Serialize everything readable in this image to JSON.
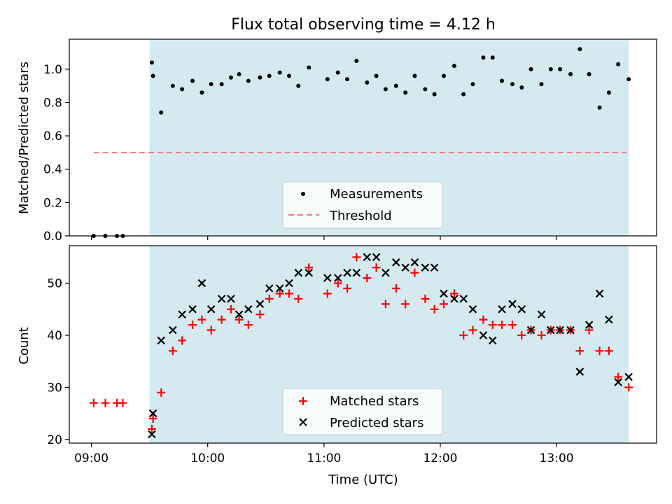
{
  "figure": {
    "title": "Flux total observing time = 4.12 h",
    "xlabel": "Time (UTC)",
    "x_tick_labels": [
      "09:00",
      "10:00",
      "11:00",
      "12:00",
      "13:00"
    ],
    "observing_window": {
      "start_h": 9.5,
      "end_h": 13.62
    },
    "colors": {
      "window_fill": "#d4eaf0",
      "threshold": "#f08080",
      "matched": "#ff0000",
      "predicted": "#000000",
      "measurement": "#000000"
    }
  },
  "chart_data": [
    {
      "type": "scatter",
      "name": "ratio-panel",
      "title": "Flux total observing time = 4.12 h",
      "xlabel": "",
      "ylabel": "Matched/Predicted stars",
      "xlim_hours": [
        8.81,
        13.86
      ],
      "ylim": [
        0,
        1.18
      ],
      "y_ticks": [
        0.0,
        0.2,
        0.4,
        0.6,
        0.8,
        1.0
      ],
      "y_tick_labels": [
        "0.0",
        "0.2",
        "0.4",
        "0.6",
        "0.8",
        "1.0"
      ],
      "legend": {
        "placement": "lower-center",
        "entries": [
          "Measurements",
          "Threshold"
        ]
      },
      "threshold": {
        "name": "Threshold",
        "value": 0.5,
        "x_range_hours": [
          9.02,
          13.6
        ],
        "style": "dashed"
      },
      "series": [
        {
          "name": "Measurements",
          "marker": "dot",
          "points": [
            [
              9.02,
              0.0
            ],
            [
              9.12,
              0.0
            ],
            [
              9.22,
              0.0
            ],
            [
              9.27,
              0.0
            ],
            [
              9.52,
              1.04
            ],
            [
              9.53,
              0.96
            ],
            [
              9.6,
              0.74
            ],
            [
              9.7,
              0.9
            ],
            [
              9.78,
              0.88
            ],
            [
              9.87,
              0.93
            ],
            [
              9.95,
              0.86
            ],
            [
              10.03,
              0.91
            ],
            [
              10.12,
              0.91
            ],
            [
              10.2,
              0.95
            ],
            [
              10.27,
              0.97
            ],
            [
              10.35,
              0.93
            ],
            [
              10.45,
              0.95
            ],
            [
              10.53,
              0.96
            ],
            [
              10.62,
              0.98
            ],
            [
              10.7,
              0.96
            ],
            [
              10.78,
              0.9
            ],
            [
              10.87,
              1.01
            ],
            [
              11.03,
              0.94
            ],
            [
              11.12,
              0.98
            ],
            [
              11.2,
              0.94
            ],
            [
              11.28,
              1.05
            ],
            [
              11.37,
              0.92
            ],
            [
              11.45,
              0.96
            ],
            [
              11.53,
              0.88
            ],
            [
              11.62,
              0.9
            ],
            [
              11.7,
              0.86
            ],
            [
              11.78,
              0.96
            ],
            [
              11.87,
              0.88
            ],
            [
              11.95,
              0.85
            ],
            [
              12.03,
              0.96
            ],
            [
              12.12,
              1.02
            ],
            [
              12.2,
              0.85
            ],
            [
              12.28,
              0.91
            ],
            [
              12.37,
              1.07
            ],
            [
              12.45,
              1.07
            ],
            [
              12.53,
              0.93
            ],
            [
              12.62,
              0.91
            ],
            [
              12.7,
              0.89
            ],
            [
              12.78,
              1.0
            ],
            [
              12.87,
              0.91
            ],
            [
              12.95,
              1.0
            ],
            [
              13.03,
              1.0
            ],
            [
              13.12,
              0.97
            ],
            [
              13.2,
              1.12
            ],
            [
              13.28,
              0.97
            ],
            [
              13.37,
              0.77
            ],
            [
              13.45,
              0.86
            ],
            [
              13.53,
              1.03
            ],
            [
              13.62,
              0.94
            ]
          ]
        }
      ]
    },
    {
      "type": "scatter",
      "name": "count-panel",
      "xlabel": "Time (UTC)",
      "ylabel": "Count",
      "xlim_hours": [
        8.81,
        13.86
      ],
      "ylim": [
        19.3,
        57.2
      ],
      "y_ticks": [
        20,
        30,
        40,
        50
      ],
      "y_tick_labels": [
        "20",
        "30",
        "40",
        "50"
      ],
      "x_ticks_hours": [
        9,
        10,
        11,
        12,
        13
      ],
      "x_tick_labels": [
        "09:00",
        "10:00",
        "11:00",
        "12:00",
        "13:00"
      ],
      "legend": {
        "placement": "lower-center",
        "entries": [
          "Matched stars",
          "Predicted stars"
        ]
      },
      "series": [
        {
          "name": "Matched stars",
          "marker": "plus",
          "points": [
            [
              9.02,
              27
            ],
            [
              9.12,
              27
            ],
            [
              9.22,
              27
            ],
            [
              9.27,
              27
            ],
            [
              9.52,
              22
            ],
            [
              9.53,
              24
            ],
            [
              9.6,
              29
            ],
            [
              9.7,
              37
            ],
            [
              9.78,
              39
            ],
            [
              9.87,
              42
            ],
            [
              9.95,
              43
            ],
            [
              10.03,
              41
            ],
            [
              10.12,
              43
            ],
            [
              10.2,
              45
            ],
            [
              10.27,
              43
            ],
            [
              10.35,
              42
            ],
            [
              10.45,
              44
            ],
            [
              10.53,
              47
            ],
            [
              10.62,
              48
            ],
            [
              10.7,
              48
            ],
            [
              10.78,
              47
            ],
            [
              10.87,
              53
            ],
            [
              11.03,
              48
            ],
            [
              11.12,
              50
            ],
            [
              11.2,
              49
            ],
            [
              11.28,
              55
            ],
            [
              11.37,
              51
            ],
            [
              11.45,
              53
            ],
            [
              11.53,
              46
            ],
            [
              11.62,
              49
            ],
            [
              11.7,
              46
            ],
            [
              11.78,
              52
            ],
            [
              11.87,
              47
            ],
            [
              11.95,
              45
            ],
            [
              12.03,
              46
            ],
            [
              12.12,
              48
            ],
            [
              12.2,
              40
            ],
            [
              12.28,
              41
            ],
            [
              12.37,
              43
            ],
            [
              12.45,
              42
            ],
            [
              12.53,
              42
            ],
            [
              12.62,
              42
            ],
            [
              12.7,
              40
            ],
            [
              12.78,
              41
            ],
            [
              12.87,
              40
            ],
            [
              12.95,
              41
            ],
            [
              13.03,
              41
            ],
            [
              13.12,
              41
            ],
            [
              13.2,
              37
            ],
            [
              13.28,
              41
            ],
            [
              13.37,
              37
            ],
            [
              13.45,
              37
            ],
            [
              13.53,
              32
            ],
            [
              13.62,
              30
            ]
          ]
        },
        {
          "name": "Predicted stars",
          "marker": "x",
          "points": [
            [
              9.52,
              21
            ],
            [
              9.53,
              25
            ],
            [
              9.6,
              39
            ],
            [
              9.7,
              41
            ],
            [
              9.78,
              44
            ],
            [
              9.87,
              45
            ],
            [
              9.95,
              50
            ],
            [
              10.03,
              45
            ],
            [
              10.12,
              47
            ],
            [
              10.2,
              47
            ],
            [
              10.27,
              44
            ],
            [
              10.35,
              45
            ],
            [
              10.45,
              46
            ],
            [
              10.53,
              49
            ],
            [
              10.62,
              49
            ],
            [
              10.7,
              50
            ],
            [
              10.78,
              52
            ],
            [
              10.87,
              52
            ],
            [
              11.03,
              51
            ],
            [
              11.12,
              51
            ],
            [
              11.2,
              52
            ],
            [
              11.28,
              52
            ],
            [
              11.37,
              55
            ],
            [
              11.45,
              55
            ],
            [
              11.53,
              52
            ],
            [
              11.62,
              54
            ],
            [
              11.7,
              53
            ],
            [
              11.78,
              54
            ],
            [
              11.87,
              53
            ],
            [
              11.95,
              53
            ],
            [
              12.03,
              48
            ],
            [
              12.12,
              47
            ],
            [
              12.2,
              47
            ],
            [
              12.28,
              45
            ],
            [
              12.37,
              40
            ],
            [
              12.45,
              39
            ],
            [
              12.53,
              45
            ],
            [
              12.62,
              46
            ],
            [
              12.7,
              45
            ],
            [
              12.78,
              41
            ],
            [
              12.87,
              44
            ],
            [
              12.95,
              41
            ],
            [
              13.03,
              41
            ],
            [
              13.12,
              41
            ],
            [
              13.2,
              33
            ],
            [
              13.28,
              42
            ],
            [
              13.37,
              48
            ],
            [
              13.45,
              43
            ],
            [
              13.53,
              31
            ],
            [
              13.62,
              32
            ]
          ]
        }
      ]
    }
  ]
}
